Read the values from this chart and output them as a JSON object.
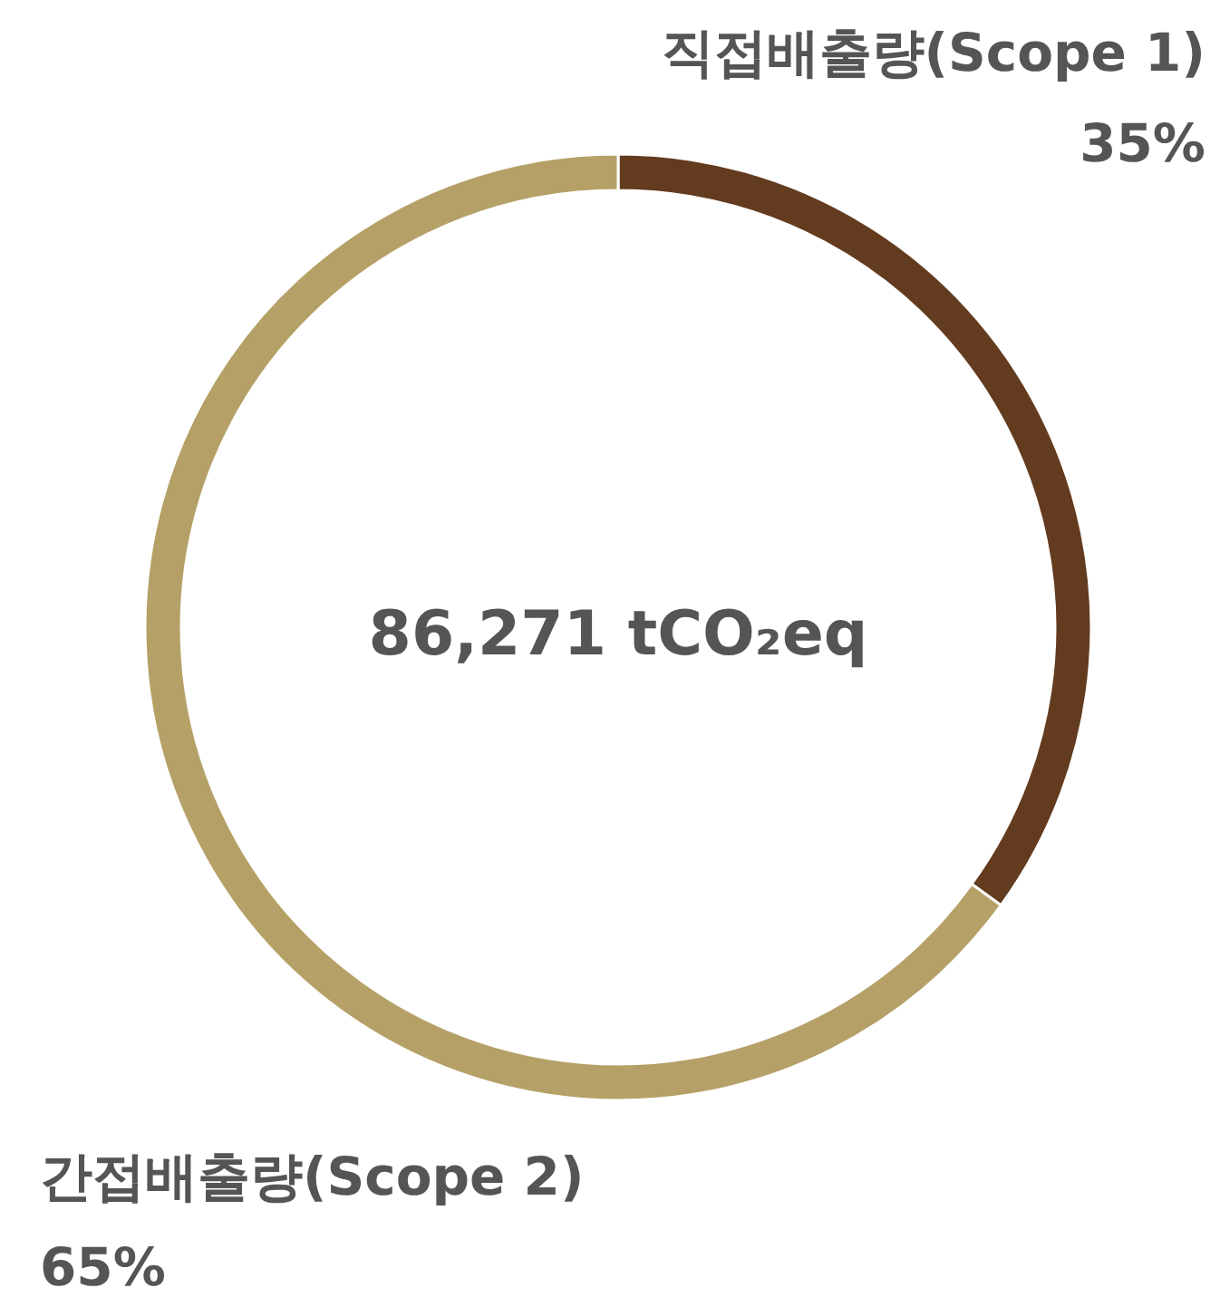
{
  "chart_data": {
    "type": "donut",
    "categories": [
      "직접배출량(Scope 1)",
      "간접배출량(Scope 2)"
    ],
    "values": [
      35,
      65
    ],
    "colors": [
      "#633b1e",
      "#b5a167"
    ],
    "value_labels": [
      "35%",
      "65%"
    ],
    "annotations": [
      "86,271 tCO₂eq"
    ]
  }
}
